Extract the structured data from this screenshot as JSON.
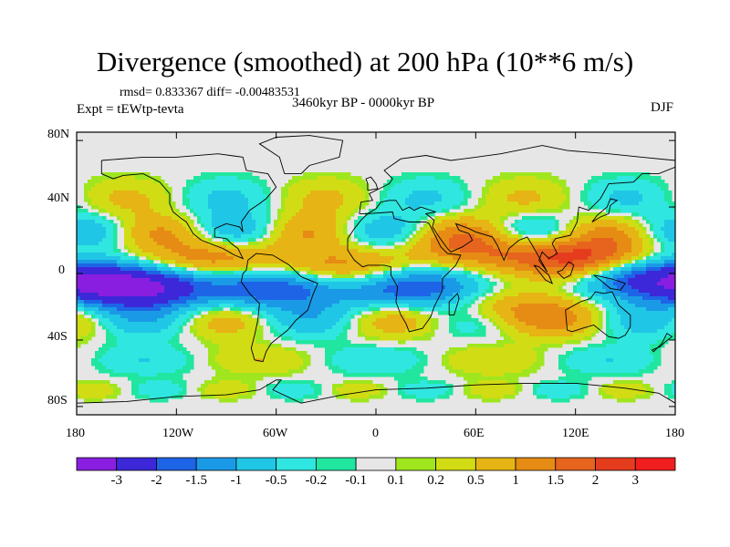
{
  "title": "Divergence (smoothed) at 200 hPa (10**6 m/s)",
  "stats": "rmsd= 0.833367 diff= -0.00483531",
  "experiment": "Expt = tEWtp-tevta",
  "period": "3460kyr BP - 0000kyr BP",
  "season": "DJF",
  "y_axis": {
    "ticks": [
      "80N",
      "40N",
      "0",
      "40S",
      "80S"
    ],
    "values": [
      80,
      40,
      0,
      -40,
      -80
    ]
  },
  "x_axis": {
    "ticks": [
      "180",
      "120W",
      "60W",
      "0",
      "60E",
      "120E",
      "180"
    ],
    "values": [
      -180,
      -120,
      -60,
      0,
      60,
      120,
      180
    ]
  },
  "colorbar": {
    "labels": [
      "-3",
      "-2",
      "-1.5",
      "-1",
      "-0.5",
      "-0.2",
      "-0.1",
      "0.1",
      "0.2",
      "0.5",
      "1",
      "1.5",
      "2",
      "3"
    ],
    "colors": [
      "#8a1ee0",
      "#3c28d8",
      "#1e64e6",
      "#1a9ae6",
      "#20c6e6",
      "#30e6e0",
      "#20e6a0",
      "#e6e6e6",
      "#a0e61e",
      "#d2dc14",
      "#e6b414",
      "#e68c14",
      "#e6641e",
      "#e63c1e",
      "#f01e1e"
    ]
  },
  "chart_data": {
    "type": "heatmap",
    "title": "Divergence (smoothed) at 200 hPa (10**6 m/s)",
    "units": "10**6 m/s",
    "xlim": [
      -180,
      180
    ],
    "ylim": [
      -90,
      90
    ],
    "levels": [
      -3,
      -2,
      -1.5,
      -1,
      -0.5,
      -0.2,
      -0.1,
      0.1,
      0.2,
      0.5,
      1,
      1.5,
      2,
      3
    ],
    "features": [
      {
        "region": "central tropical Pacific (≈150W, 10S)",
        "value": -3.5,
        "lon": -145,
        "lat": -8
      },
      {
        "region": "western tropical Pacific (≈160E, 5S)",
        "value": -2.5,
        "lon": 160,
        "lat": -2
      },
      {
        "region": "Amazon basin (≈60W, 10S)",
        "value": -2.2,
        "lon": -60,
        "lat": -8
      },
      {
        "region": "central Africa (≈20E, 10S)",
        "value": -2.2,
        "lon": 22,
        "lat": -8
      },
      {
        "region": "maritime continent (≈125E, 5N)",
        "value": 2.5,
        "lon": 125,
        "lat": 8
      },
      {
        "region": "eastern tropical Pacific (≈100W, 10N)",
        "value": 1.5,
        "lon": -100,
        "lat": 8
      },
      {
        "region": "tropical Atlantic (≈20W, 0)",
        "value": 1.6,
        "lon": -20,
        "lat": 2
      },
      {
        "region": "Arabian Sea / India (≈60E, 15N)",
        "value": 1.2,
        "lon": 60,
        "lat": 14
      },
      {
        "region": "southern Indian Ocean (≈80E, 20S)",
        "value": 1.2,
        "lon": 80,
        "lat": -22
      }
    ]
  }
}
